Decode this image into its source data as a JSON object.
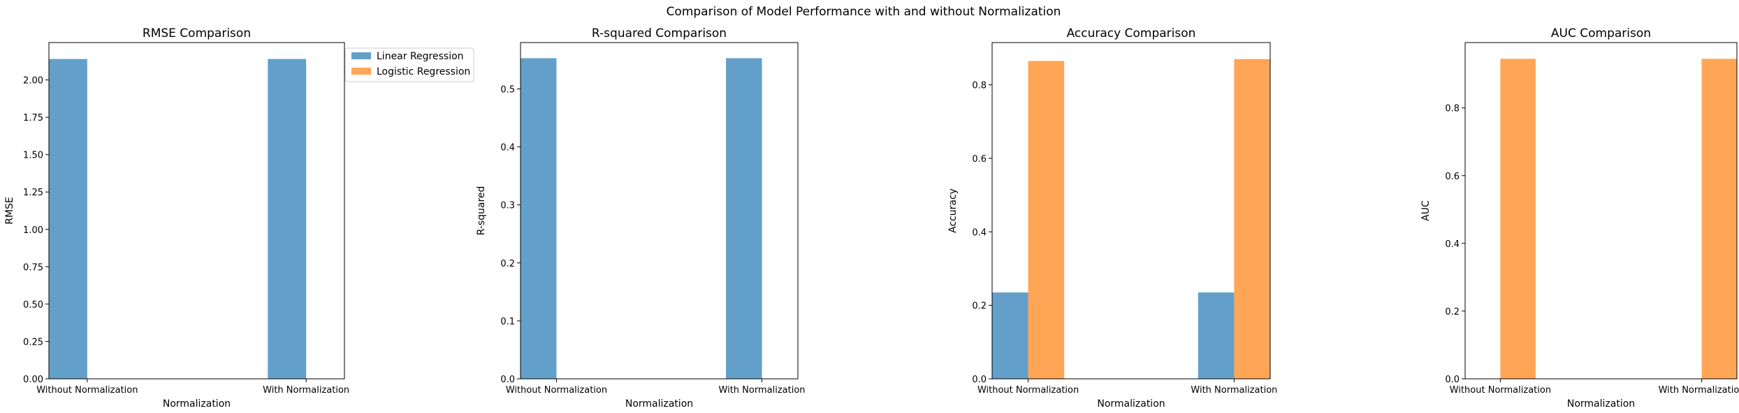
{
  "suptitle": "Comparison of Model Performance with and without Normalization",
  "legend": {
    "placement": "right of first panel, top",
    "entries": [
      {
        "label": "Linear Regression",
        "color": "#1f77b4"
      },
      {
        "label": "Logistic Regression",
        "color": "#ff7f0e"
      }
    ]
  },
  "colors": {
    "linear": "#1f77b4",
    "logistic": "#ff7f0e",
    "bar_opacity": 0.7
  },
  "chart_data": [
    {
      "type": "bar",
      "title": "RMSE Comparison",
      "xlabel": "Normalization",
      "ylabel": "RMSE",
      "categories": [
        "Without Normalization",
        "With Normalization"
      ],
      "series": [
        {
          "name": "Linear Regression",
          "values": [
            2.14,
            2.14
          ]
        },
        {
          "name": "Logistic Regression",
          "values": [
            null,
            null
          ]
        }
      ],
      "ylim": [
        0,
        2.25
      ],
      "yticks": [
        0.0,
        0.25,
        0.5,
        0.75,
        1.0,
        1.25,
        1.5,
        1.75,
        2.0
      ],
      "ytick_labels": [
        "0.00",
        "0.25",
        "0.50",
        "0.75",
        "1.00",
        "1.25",
        "1.50",
        "1.75",
        "2.00"
      ],
      "grid": false
    },
    {
      "type": "bar",
      "title": "R-squared Comparison",
      "xlabel": "Normalization",
      "ylabel": "R-squared",
      "categories": [
        "Without Normalization",
        "With Normalization"
      ],
      "series": [
        {
          "name": "Linear Regression",
          "values": [
            0.553,
            0.553
          ]
        },
        {
          "name": "Logistic Regression",
          "values": [
            null,
            null
          ]
        }
      ],
      "ylim": [
        0,
        0.58
      ],
      "yticks": [
        0.0,
        0.1,
        0.2,
        0.3,
        0.4,
        0.5
      ],
      "ytick_labels": [
        "0.0",
        "0.1",
        "0.2",
        "0.3",
        "0.4",
        "0.5"
      ],
      "grid": false
    },
    {
      "type": "bar",
      "title": "Accuracy Comparison",
      "xlabel": "Normalization",
      "ylabel": "Accuracy",
      "categories": [
        "Without Normalization",
        "With Normalization"
      ],
      "series": [
        {
          "name": "Linear Regression",
          "values": [
            0.235,
            0.235
          ]
        },
        {
          "name": "Logistic Regression",
          "values": [
            0.865,
            0.87
          ]
        }
      ],
      "ylim": [
        0,
        0.915
      ],
      "yticks": [
        0.0,
        0.2,
        0.4,
        0.6,
        0.8
      ],
      "ytick_labels": [
        "0.0",
        "0.2",
        "0.4",
        "0.6",
        "0.8"
      ],
      "grid": false
    },
    {
      "type": "bar",
      "title": "AUC Comparison",
      "xlabel": "Normalization",
      "ylabel": "AUC",
      "categories": [
        "Without Normalization",
        "With Normalization"
      ],
      "series": [
        {
          "name": "Linear Regression",
          "values": [
            null,
            null
          ]
        },
        {
          "name": "Logistic Regression",
          "values": [
            0.945,
            0.945
          ]
        }
      ],
      "ylim": [
        0,
        0.993
      ],
      "yticks": [
        0.0,
        0.2,
        0.4,
        0.6,
        0.8
      ],
      "ytick_labels": [
        "0.0",
        "0.2",
        "0.4",
        "0.6",
        "0.8"
      ],
      "grid": false
    }
  ]
}
